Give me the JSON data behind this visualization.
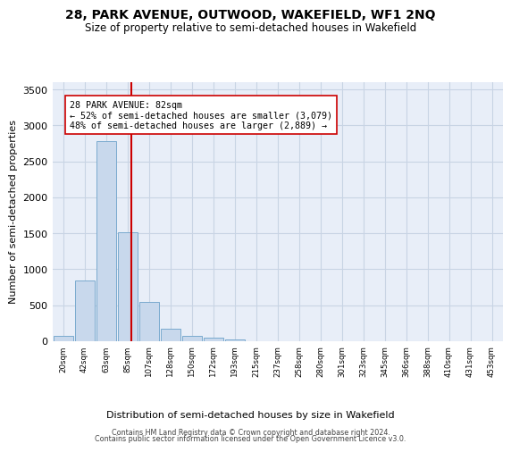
{
  "title": "28, PARK AVENUE, OUTWOOD, WAKEFIELD, WF1 2NQ",
  "subtitle": "Size of property relative to semi-detached houses in Wakefield",
  "xlabel": "Distribution of semi-detached houses by size in Wakefield",
  "ylabel": "Number of semi-detached properties",
  "bar_values": [
    70,
    840,
    2780,
    1520,
    550,
    180,
    70,
    45,
    30,
    0,
    0,
    0,
    0,
    0,
    0,
    0,
    0,
    0,
    0,
    0,
    0
  ],
  "bar_color": "#c8d8ec",
  "bar_edge_color": "#7aaace",
  "x_labels": [
    "20sqm",
    "42sqm",
    "63sqm",
    "85sqm",
    "107sqm",
    "128sqm",
    "150sqm",
    "172sqm",
    "193sqm",
    "215sqm",
    "237sqm",
    "258sqm",
    "280sqm",
    "301sqm",
    "323sqm",
    "345sqm",
    "366sqm",
    "388sqm",
    "410sqm",
    "431sqm",
    "453sqm"
  ],
  "ylim": [
    0,
    3600
  ],
  "yticks": [
    0,
    500,
    1000,
    1500,
    2000,
    2500,
    3000,
    3500
  ],
  "property_line_x": 3.18,
  "annotation_text": "28 PARK AVENUE: 82sqm\n← 52% of semi-detached houses are smaller (3,079)\n48% of semi-detached houses are larger (2,889) →",
  "vline_color": "#cc0000",
  "grid_color": "#c8d4e4",
  "bg_color": "#e8eef8",
  "footer_line1": "Contains HM Land Registry data © Crown copyright and database right 2024.",
  "footer_line2": "Contains public sector information licensed under the Open Government Licence v3.0."
}
